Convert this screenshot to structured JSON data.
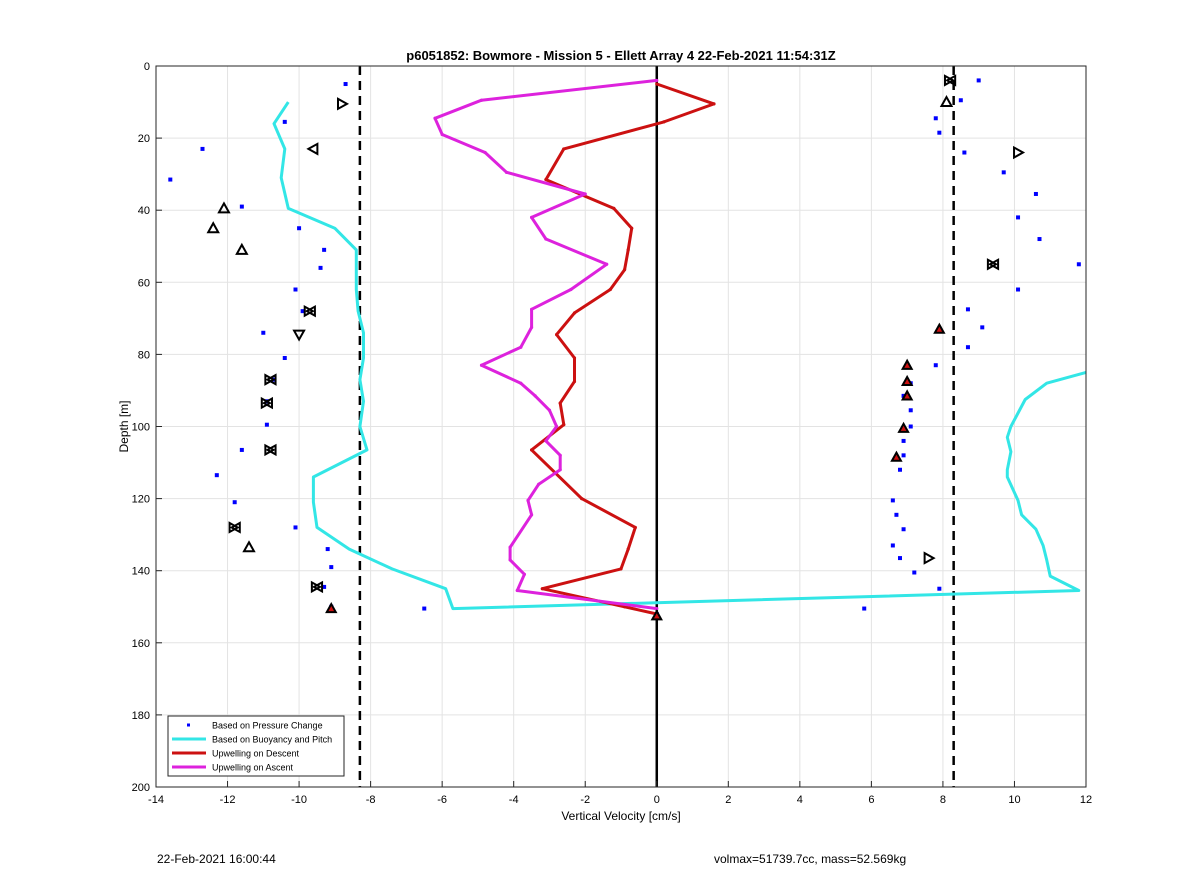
{
  "chart_data": {
    "type": "line",
    "title": "p6051852: Bowmore - Mission 5 - Ellett Array 4 22-Feb-2021 11:54:31Z",
    "xlabel": "Vertical Velocity [cm/s]",
    "ylabel": "Depth [m]",
    "xlim": [
      -14,
      12
    ],
    "ylim": [
      0,
      200
    ],
    "y_reversed": true,
    "grid": true,
    "x_ticks": [
      -14,
      -12,
      -10,
      -8,
      -6,
      -4,
      -2,
      0,
      2,
      4,
      6,
      8,
      10,
      12
    ],
    "y_ticks": [
      0,
      20,
      40,
      60,
      80,
      100,
      120,
      140,
      160,
      180,
      200
    ],
    "legend_position": "bottom-left",
    "reference_lines": [
      {
        "style": "dashed",
        "x": -8.3
      },
      {
        "style": "dashed",
        "x": 8.3
      },
      {
        "style": "solid",
        "x": 0
      }
    ],
    "series": [
      {
        "name": "Based on Pressure Change",
        "kind": "points",
        "color": "#0000ff",
        "points": [
          [
            -8.7,
            5
          ],
          [
            -10.4,
            15.5
          ],
          [
            -12.7,
            23
          ],
          [
            -13.6,
            31.5
          ],
          [
            -11.6,
            39
          ],
          [
            -10,
            45
          ],
          [
            -9.3,
            51
          ],
          [
            -9.4,
            56
          ],
          [
            -10.1,
            62
          ],
          [
            -9.9,
            68
          ],
          [
            -11,
            74
          ],
          [
            -10.4,
            81
          ],
          [
            -10.7,
            87
          ],
          [
            -10.9,
            93
          ],
          [
            -10.9,
            99.5
          ],
          [
            -11.6,
            106.5
          ],
          [
            -12.3,
            113.5
          ],
          [
            -11.8,
            121
          ],
          [
            -10.1,
            128
          ],
          [
            -9.2,
            134
          ],
          [
            -9.1,
            139
          ],
          [
            -9.3,
            144.5
          ],
          [
            -9.1,
            150
          ],
          [
            -6.5,
            150.5
          ],
          [
            0,
            152
          ],
          [
            9,
            4
          ],
          [
            8.5,
            9.5
          ],
          [
            7.8,
            14.5
          ],
          [
            7.9,
            18.5
          ],
          [
            8.6,
            24
          ],
          [
            9.7,
            29.5
          ],
          [
            10.6,
            35.5
          ],
          [
            10.1,
            42
          ],
          [
            10.7,
            48
          ],
          [
            11.8,
            55
          ],
          [
            10.1,
            62
          ],
          [
            8.7,
            67.5
          ],
          [
            9.1,
            72.5
          ],
          [
            8.7,
            78
          ],
          [
            7.8,
            83
          ],
          [
            7.1,
            88
          ],
          [
            6.9,
            91.5
          ],
          [
            7.1,
            95.5
          ],
          [
            7.1,
            100
          ],
          [
            6.9,
            104
          ],
          [
            6.9,
            108
          ],
          [
            6.8,
            112
          ],
          [
            6.6,
            120.5
          ],
          [
            6.7,
            124.5
          ],
          [
            6.9,
            128.5
          ],
          [
            6.6,
            133
          ],
          [
            6.8,
            136.5
          ],
          [
            7.2,
            140.5
          ],
          [
            7.9,
            145
          ],
          [
            5.8,
            150.5
          ]
        ]
      },
      {
        "name": "Based on Buoyancy and Pitch",
        "kind": "line",
        "color": "#33e6e6",
        "points": [
          [
            -10.3,
            10
          ],
          [
            -10.7,
            16
          ],
          [
            -10.4,
            23
          ],
          [
            -10.5,
            31
          ],
          [
            -10.3,
            39.5
          ],
          [
            -9,
            45
          ],
          [
            -8.4,
            51
          ],
          [
            -8.4,
            56
          ],
          [
            -8.4,
            62
          ],
          [
            -8.35,
            68
          ],
          [
            -8.2,
            74
          ],
          [
            -8.2,
            81
          ],
          [
            -8.3,
            87
          ],
          [
            -8.2,
            93
          ],
          [
            -8.3,
            100
          ],
          [
            -8.1,
            106.5
          ],
          [
            -9.6,
            114
          ],
          [
            -9.6,
            121
          ],
          [
            -9.5,
            128
          ],
          [
            -8.6,
            134
          ],
          [
            -7.4,
            139.5
          ],
          [
            -5.9,
            145
          ],
          [
            -5.7,
            150.5
          ],
          [
            11.8,
            145.5
          ],
          [
            11,
            141.5
          ],
          [
            10.9,
            137
          ],
          [
            10.8,
            133
          ],
          [
            10.6,
            128.5
          ],
          [
            10.2,
            124.5
          ],
          [
            10.1,
            120.5
          ],
          [
            9.8,
            114
          ],
          [
            9.8,
            112
          ],
          [
            9.9,
            107
          ],
          [
            9.8,
            103
          ],
          [
            9.9,
            100
          ],
          [
            10.3,
            92.5
          ],
          [
            10.9,
            88
          ],
          [
            12,
            85
          ]
        ]
      },
      {
        "name": "Upwelling on Descent",
        "kind": "line",
        "color": "#cc1111",
        "points": [
          [
            0,
            5
          ],
          [
            1.6,
            10.5
          ],
          [
            0.2,
            15.5
          ],
          [
            -2.6,
            23
          ],
          [
            -3.1,
            31.5
          ],
          [
            -1.2,
            39.5
          ],
          [
            -0.7,
            45
          ],
          [
            -0.8,
            51
          ],
          [
            -0.9,
            56.5
          ],
          [
            -1.3,
            62
          ],
          [
            -2.3,
            68.5
          ],
          [
            -2.8,
            74.5
          ],
          [
            -2.3,
            81
          ],
          [
            -2.3,
            87.5
          ],
          [
            -2.7,
            93.5
          ],
          [
            -2.6,
            99.5
          ],
          [
            -3.5,
            106.5
          ],
          [
            -2.1,
            120
          ],
          [
            -0.6,
            128
          ],
          [
            -0.8,
            134
          ],
          [
            -1,
            139.5
          ],
          [
            -3.2,
            145
          ],
          [
            -0.9,
            150
          ],
          [
            0,
            152
          ]
        ]
      },
      {
        "name": "Upwelling on Ascent",
        "kind": "line",
        "color": "#dd22dd",
        "points": [
          [
            0,
            4
          ],
          [
            -4.9,
            9.5
          ],
          [
            -6.2,
            14.5
          ],
          [
            -6,
            19
          ],
          [
            -4.8,
            24
          ],
          [
            -4.2,
            29.5
          ],
          [
            -2,
            35.5
          ],
          [
            -3.5,
            42
          ],
          [
            -3.1,
            48
          ],
          [
            -1.4,
            55
          ],
          [
            -2.4,
            62
          ],
          [
            -3.5,
            67.5
          ],
          [
            -3.5,
            72.5
          ],
          [
            -3.8,
            78
          ],
          [
            -4.9,
            83
          ],
          [
            -3.8,
            88
          ],
          [
            -3.4,
            91.5
          ],
          [
            -3,
            95.5
          ],
          [
            -2.8,
            100
          ],
          [
            -3.1,
            104
          ],
          [
            -2.7,
            108
          ],
          [
            -2.7,
            112
          ],
          [
            -3.3,
            116
          ],
          [
            -3.6,
            120.5
          ],
          [
            -3.5,
            124.5
          ],
          [
            -4.1,
            133.5
          ],
          [
            -4.1,
            137
          ],
          [
            -3.7,
            141
          ],
          [
            -3.9,
            145.5
          ],
          [
            0,
            150.5
          ]
        ]
      },
      {
        "name": "Ascent markers",
        "kind": "markers",
        "marker": "triangle-up",
        "color": "#000000",
        "points": [
          [
            -12.1,
            39.5
          ],
          [
            -12.4,
            45
          ],
          [
            -11.6,
            51
          ],
          [
            -11.4,
            133.5
          ],
          [
            8.1,
            10
          ]
        ]
      },
      {
        "name": "Descent markers",
        "kind": "markers",
        "marker": "triangle-down",
        "color": "#000000",
        "points": [
          [
            -10,
            74.5
          ]
        ]
      },
      {
        "name": "Right-pointing markers",
        "kind": "markers",
        "marker": "triangle-right",
        "color": "#000000",
        "points": [
          [
            -8.8,
            10.5
          ],
          [
            10.1,
            24
          ],
          [
            7.6,
            136.5
          ]
        ]
      },
      {
        "name": "Left-pointing markers",
        "kind": "markers",
        "marker": "triangle-left",
        "color": "#000000",
        "points": [
          [
            -9.6,
            23
          ]
        ]
      },
      {
        "name": "Paired markers",
        "kind": "markers",
        "marker": "diamond-pair",
        "color": "#000000",
        "points": [
          [
            -9.7,
            68
          ],
          [
            -10.8,
            87
          ],
          [
            -10.9,
            93.5
          ],
          [
            -10.8,
            106.5
          ],
          [
            -11.8,
            128
          ],
          [
            -9.5,
            144.5
          ],
          [
            8.2,
            4
          ],
          [
            9.4,
            55
          ]
        ]
      },
      {
        "name": "Filled markers",
        "kind": "markers",
        "marker": "filled",
        "color": "#cc1111",
        "points": [
          [
            -9.1,
            150.5
          ],
          [
            0,
            152.5
          ],
          [
            7.9,
            73
          ],
          [
            7,
            83
          ],
          [
            7,
            87.5
          ],
          [
            7,
            91.5
          ],
          [
            6.9,
            100.5
          ],
          [
            6.7,
            108.5
          ]
        ]
      }
    ]
  },
  "footer": {
    "timestamp": "22-Feb-2021 16:00:44",
    "info": "volmax=51739.7cc, mass=52.569kg"
  }
}
